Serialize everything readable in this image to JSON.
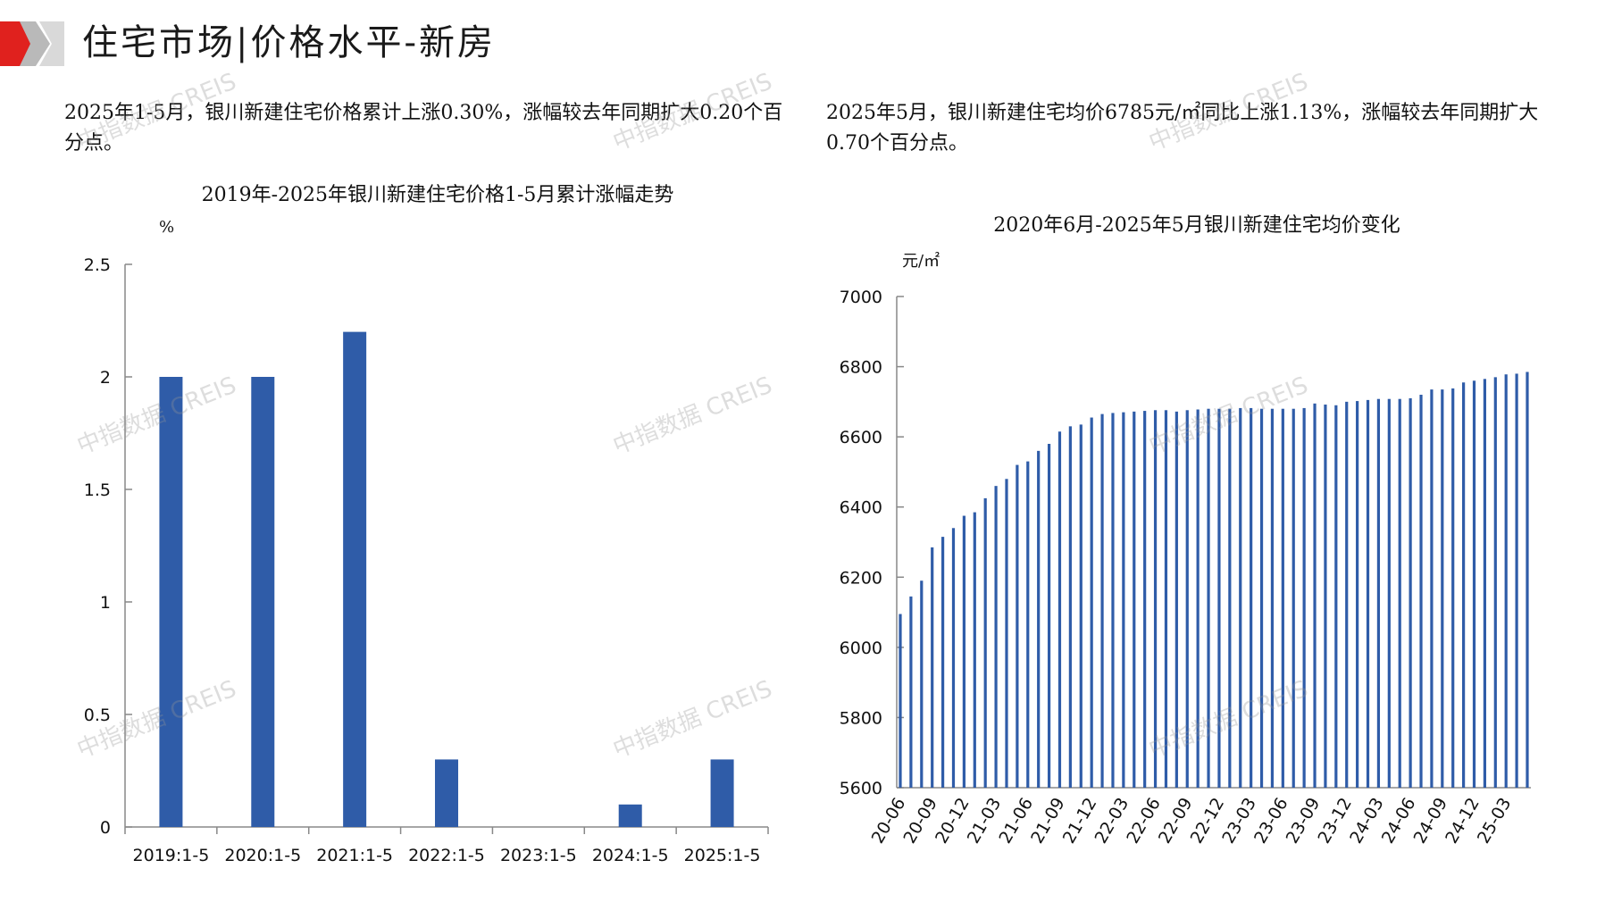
{
  "header": {
    "title": "住宅市场|价格水平-新房",
    "logo_icon": "red-gray-chevron-logo-icon",
    "colors": {
      "red": "#e0211e",
      "gray": "#b9b9b9"
    }
  },
  "summaries": {
    "left": "2025年1-5月，银川新建住宅价格累计上涨0.30%，涨幅较去年同期扩大0.20个百分点。",
    "right": "2025年5月，银川新建住宅均价6785元/㎡同比上涨1.13%，涨幅较去年同期扩大0.70个百分点。"
  },
  "watermark": "中指数据 CREIS",
  "chart_data": [
    {
      "type": "bar",
      "title": "2019年-2025年银川新建住宅价格1-5月累计涨幅走势",
      "ylabel": "%",
      "categories": [
        "2019:1-5",
        "2020:1-5",
        "2021:1-5",
        "2022:1-5",
        "2023:1-5",
        "2024:1-5",
        "2025:1-5"
      ],
      "values": [
        2.0,
        2.0,
        2.2,
        0.3,
        0.0,
        0.1,
        0.3
      ],
      "ylim": [
        0,
        2.5
      ],
      "yticks": [
        0,
        0.5,
        1,
        1.5,
        2,
        2.5
      ],
      "ytick_labels": [
        "0",
        "0.5",
        "1",
        "1.5",
        "2",
        "2.5"
      ],
      "color": "#2f5ca8",
      "grid": false
    },
    {
      "type": "bar",
      "title": "2020年6月-2025年5月银川新建住宅均价变化",
      "ylabel": "元/㎡",
      "x": [
        "20-06",
        "20-07",
        "20-08",
        "20-09",
        "20-10",
        "20-11",
        "20-12",
        "21-01",
        "21-02",
        "21-03",
        "21-04",
        "21-05",
        "21-06",
        "21-07",
        "21-08",
        "21-09",
        "21-10",
        "21-11",
        "21-12",
        "22-01",
        "22-02",
        "22-03",
        "22-04",
        "22-05",
        "22-06",
        "22-07",
        "22-08",
        "22-09",
        "22-10",
        "22-11",
        "22-12",
        "23-01",
        "23-02",
        "23-03",
        "23-04",
        "23-05",
        "23-06",
        "23-07",
        "23-08",
        "23-09",
        "23-10",
        "23-11",
        "23-12",
        "24-01",
        "24-02",
        "24-03",
        "24-04",
        "24-05",
        "24-06",
        "24-07",
        "24-08",
        "24-09",
        "24-10",
        "24-11",
        "24-12",
        "25-01",
        "25-02",
        "25-03",
        "25-04",
        "25-05"
      ],
      "xtick_labels": [
        "20-06",
        "20-09",
        "20-12",
        "21-03",
        "21-06",
        "21-09",
        "21-12",
        "22-03",
        "22-06",
        "22-09",
        "22-12",
        "23-03",
        "23-06",
        "23-09",
        "23-12",
        "24-03",
        "24-06",
        "24-09",
        "24-12",
        "25-03"
      ],
      "values": [
        6095,
        6145,
        6190,
        6285,
        6315,
        6340,
        6375,
        6385,
        6425,
        6460,
        6480,
        6520,
        6530,
        6560,
        6580,
        6615,
        6630,
        6635,
        6655,
        6665,
        6668,
        6670,
        6672,
        6674,
        6676,
        6676,
        6672,
        6676,
        6678,
        6680,
        6680,
        6680,
        6682,
        6682,
        6680,
        6680,
        6680,
        6680,
        6682,
        6695,
        6692,
        6690,
        6700,
        6702,
        6705,
        6708,
        6708,
        6708,
        6710,
        6720,
        6735,
        6735,
        6738,
        6755,
        6760,
        6765,
        6770,
        6778,
        6780,
        6785
      ],
      "ylim": [
        5600,
        7000
      ],
      "yticks": [
        5600,
        5800,
        6000,
        6200,
        6400,
        6600,
        6800,
        7000
      ],
      "ytick_labels": [
        "5600",
        "5800",
        "6000",
        "6200",
        "6400",
        "6600",
        "6800",
        "7000"
      ],
      "color": "#2f5ca8",
      "grid": false
    }
  ]
}
